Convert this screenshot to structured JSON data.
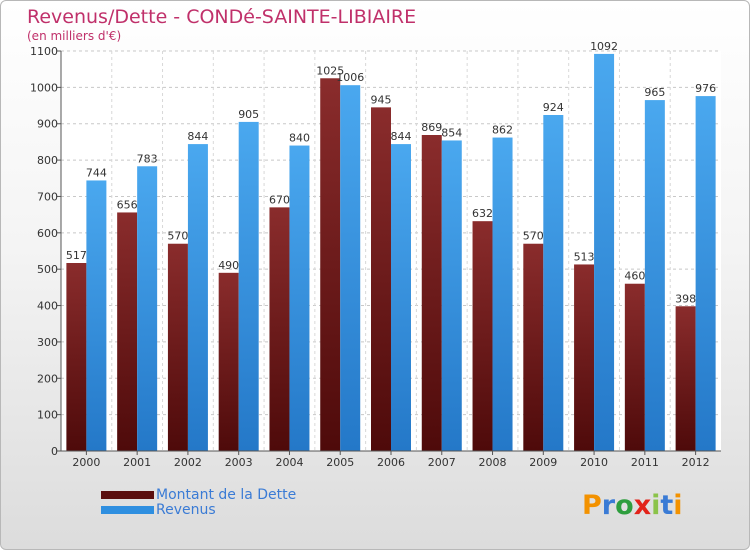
{
  "title": "Revenus/Dette - CONDé-SAINTE-LIBIAIRE",
  "subtitle": "(en milliers d'€)",
  "logo": {
    "text": "Proxiti",
    "letters": [
      "P",
      "r",
      "o",
      "x",
      "i",
      "t",
      "i"
    ],
    "colors": [
      "#f39200",
      "#3a7bd5",
      "#2e9e3e",
      "#e2231a",
      "#8bc34a",
      "#3a7bd5",
      "#f39200"
    ]
  },
  "colors": {
    "dette": "#6e1a1a",
    "revenus": "#2f8fe0",
    "title": "#c0306a"
  },
  "chart_data": {
    "type": "bar",
    "categories": [
      "2000",
      "2001",
      "2002",
      "2003",
      "2004",
      "2005",
      "2006",
      "2007",
      "2008",
      "2009",
      "2010",
      "2011",
      "2012"
    ],
    "series": [
      {
        "name": "Montant de la Dette",
        "values": [
          517,
          656,
          570,
          490,
          670,
          1025,
          945,
          869,
          632,
          570,
          513,
          460,
          398
        ]
      },
      {
        "name": "Revenus",
        "values": [
          744,
          783,
          844,
          905,
          840,
          1006,
          844,
          854,
          862,
          924,
          1092,
          965,
          976
        ]
      }
    ],
    "yticks": [
      "0",
      "100",
      "200",
      "300",
      "400",
      "500",
      "600",
      "700",
      "800",
      "900",
      "1000",
      "1100"
    ],
    "ylim": [
      0,
      1100
    ],
    "grid": true,
    "legend_position": "bottom-left"
  }
}
